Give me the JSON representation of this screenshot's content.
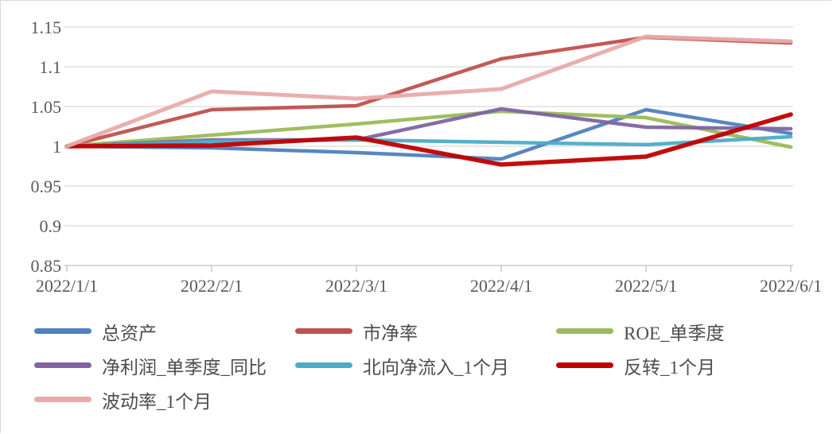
{
  "chart_data": {
    "type": "line",
    "title": "",
    "xlabel": "",
    "ylabel": "",
    "categories": [
      "2022/1/1",
      "2022/2/1",
      "2022/3/1",
      "2022/4/1",
      "2022/5/1",
      "2022/6/1"
    ],
    "series": [
      {
        "name": "总资产",
        "color": "#4F81BD",
        "values": [
          1.0,
          0.998,
          0.992,
          0.984,
          1.046,
          1.016
        ]
      },
      {
        "name": "市净率",
        "color": "#C0504D",
        "values": [
          1.0,
          1.046,
          1.051,
          1.11,
          1.137,
          1.13
        ]
      },
      {
        "name": "ROE_单季度",
        "color": "#9BBB59",
        "values": [
          1.0,
          1.014,
          1.028,
          1.044,
          1.036,
          0.999
        ]
      },
      {
        "name": "净利润_单季度_同比",
        "color": "#8064A2",
        "values": [
          1.0,
          1.008,
          1.008,
          1.047,
          1.024,
          1.022
        ]
      },
      {
        "name": "北向净流入_1个月",
        "color": "#4BACC6",
        "values": [
          1.0,
          1.006,
          1.008,
          1.005,
          1.002,
          1.012
        ]
      },
      {
        "name": "反转_1个月",
        "color": "#C00000",
        "values": [
          1.0,
          1.001,
          1.011,
          0.977,
          0.987,
          1.04
        ]
      },
      {
        "name": "波动率_1个月",
        "color": "#E8ABAB",
        "values": [
          1.0,
          1.069,
          1.06,
          1.072,
          1.138,
          1.132
        ]
      }
    ],
    "ylim": [
      0.85,
      1.15
    ],
    "ytick_labels": [
      "1.15",
      "1.1",
      "1.05",
      "1",
      "0.95",
      "0.9",
      "0.85"
    ],
    "yticks": [
      1.15,
      1.1,
      1.05,
      1.0,
      0.95,
      0.9,
      0.85
    ],
    "grid": true,
    "legend_position": "bottom",
    "colors": {
      "grid_line": "#d9d9d9",
      "axis_line": "#bfbfbf",
      "tick_label": "#595959",
      "legend_text": "#4d4d4d"
    }
  }
}
